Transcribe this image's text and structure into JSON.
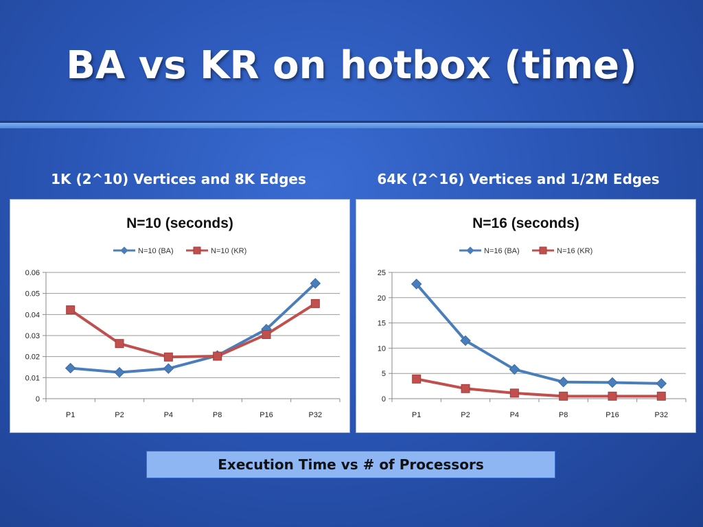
{
  "slide": {
    "title": "BA vs KR on hotbox (time)",
    "caption": "Execution Time vs # of Processors"
  },
  "colors": {
    "ba": "#4a7ebb",
    "kr": "#c0504d"
  },
  "chart_data": [
    {
      "type": "line",
      "heading": "1K (2^10) Vertices and 8K Edges",
      "title": "N=10 (seconds)",
      "categories": [
        "P1",
        "P2",
        "P4",
        "P8",
        "P16",
        "P32"
      ],
      "ylim": [
        0,
        0.06
      ],
      "yticks": [
        0,
        0.01,
        0.02,
        0.03,
        0.04,
        0.05,
        0.06
      ],
      "ytick_labels": [
        "0",
        "0.01",
        "0.02",
        "0.03",
        "0.04",
        "0.05",
        "0.06"
      ],
      "grid": true,
      "legend": "top",
      "series": [
        {
          "name": "N=10 (BA)",
          "values": [
            0.0145,
            0.0125,
            0.0143,
            0.0205,
            0.033,
            0.0548
          ]
        },
        {
          "name": "N=10 (KR)",
          "values": [
            0.0422,
            0.0262,
            0.0198,
            0.0202,
            0.0305,
            0.0452
          ]
        }
      ]
    },
    {
      "type": "line",
      "heading": "64K (2^16) Vertices and 1/2M Edges",
      "title": "N=16 (seconds)",
      "categories": [
        "P1",
        "P2",
        "P4",
        "P8",
        "P16",
        "P32"
      ],
      "ylim": [
        0,
        25
      ],
      "yticks": [
        0,
        5,
        10,
        15,
        20,
        25
      ],
      "ytick_labels": [
        "0",
        "5",
        "10",
        "15",
        "20",
        "25"
      ],
      "grid": true,
      "legend": "top",
      "series": [
        {
          "name": "N=16 (BA)",
          "values": [
            22.7,
            11.5,
            5.8,
            3.3,
            3.2,
            3.0
          ]
        },
        {
          "name": "N=16 (KR)",
          "values": [
            3.9,
            2.0,
            1.1,
            0.5,
            0.5,
            0.5
          ]
        }
      ]
    }
  ]
}
